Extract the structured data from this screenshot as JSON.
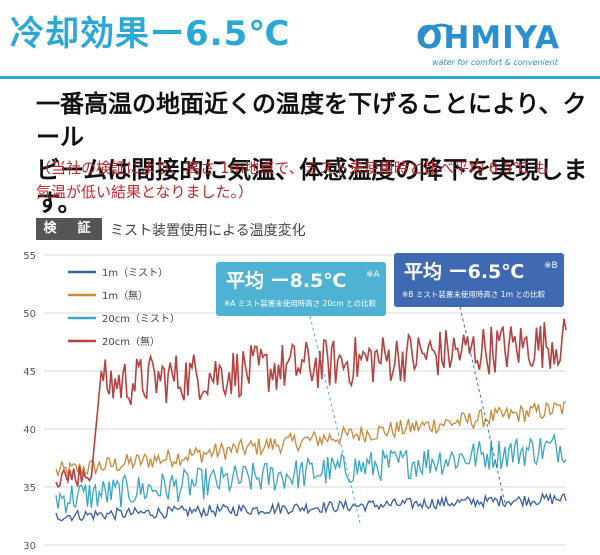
{
  "header": {
    "title": "冷却効果ー6.5℃",
    "logo_text": "OHMIYA",
    "logo_tagline": "water for comfort & convenient",
    "accent_color": "#2aa8d8"
  },
  "description": {
    "line1": "一番高温の地面近くの温度を下げることにより、クール",
    "line2": "ビームは間接的に気温、体感温度の降下を実現します。",
    "note1": "（当社の検証により、高さ 1ｍ地点で、ミスト未使用時と比べ平均  6.5℃ も",
    "note2": "気温が低い結果となりました。）"
  },
  "section": {
    "badge": "検　証",
    "subtitle": "ミスト装置使用による温度変化"
  },
  "chart_data": {
    "type": "line",
    "ylim": [
      30,
      55
    ],
    "y_ticks": [
      30,
      35,
      40,
      45,
      50,
      55
    ],
    "grid": true,
    "legend_position": "top-left",
    "series": [
      {
        "name": "1m（ミスト）",
        "color": "#3a5fa5",
        "start": 32.5,
        "end": 34.0,
        "noise": 0.5
      },
      {
        "name": "1m（無）",
        "color": "#c98a3a",
        "start": 36.3,
        "end": 41.8,
        "noise": 0.8
      },
      {
        "name": "20cm（ミスト）",
        "color": "#3aa6c4",
        "start": 34.0,
        "end": 38.5,
        "noise": 1.4
      },
      {
        "name": "20cm（無）",
        "color": "#b8413f",
        "start": 43.5,
        "end": 47.5,
        "noise": 2.2
      }
    ],
    "annotations": [
      {
        "main": "平均 ー8.5℃",
        "sup": "※A",
        "note": "※A ミスト装置未使用時高さ 20cm との比較",
        "color": "#4fb2d2"
      },
      {
        "main": "平均 ー6.5℃",
        "sup": "※B",
        "note": "※B ミスト装置未使用時高さ 1ｍ との比較",
        "color": "#3f6ab2"
      }
    ]
  }
}
